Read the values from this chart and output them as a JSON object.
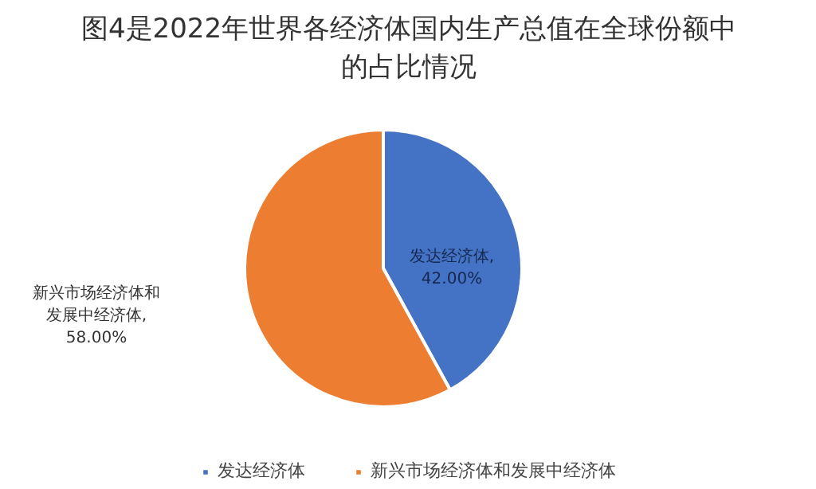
{
  "chart_data": {
    "type": "pie",
    "title": "图4是2022年世界各经济体国内生产总值在全球份额中的占比情况",
    "categories": [
      "发达经济体",
      "新兴市场经济体和发展中经济体"
    ],
    "values": [
      42,
      58
    ],
    "colors": [
      "#4472c4",
      "#ed7d31"
    ],
    "value_labels": [
      "发达经济体, 42.00%",
      "新兴市场经济体和发展中经济体, 58.00%"
    ],
    "legend": "bottom"
  }
}
